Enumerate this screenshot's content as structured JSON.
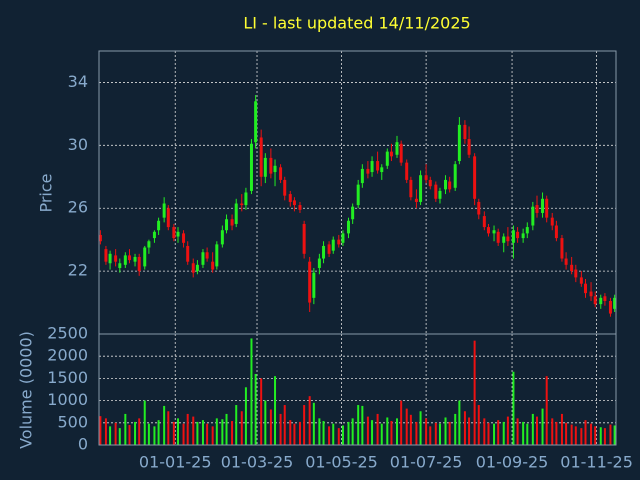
{
  "chart_data": {
    "type": "candlestick",
    "title": "LI - last updated 14/11/2025",
    "ylabel": "Price",
    "volume_label": "Volume (0000)",
    "colors": {
      "up": "#22ee22",
      "down": "#ee1111",
      "background": "#112233",
      "text": "#88aacc",
      "title": "#ffff33"
    },
    "grid": true,
    "xlim": [
      "2024-11-07",
      "2025-11-15"
    ],
    "xticks": [
      {
        "value": "2025-01-01",
        "label": "01-01-25"
      },
      {
        "value": "2025-03-01",
        "label": "01-03-25"
      },
      {
        "value": "2025-05-01",
        "label": "01-05-25"
      },
      {
        "value": "2025-07-01",
        "label": "01-07-25"
      },
      {
        "value": "2025-09-01",
        "label": "01-09-25"
      },
      {
        "value": "2025-11-01",
        "label": "01-11-25"
      }
    ],
    "ylim": [
      18,
      36
    ],
    "yticks": [
      22,
      26,
      30,
      34
    ],
    "volume_ylim": [
      0,
      2500
    ],
    "volume_yticks": [
      0,
      500,
      1000,
      1500,
      2000,
      2500
    ],
    "x": [
      "2024-11-08",
      "2024-11-12",
      "2024-11-15",
      "2024-11-19",
      "2024-11-22",
      "2024-11-26",
      "2024-11-29",
      "2024-12-03",
      "2024-12-06",
      "2024-12-10",
      "2024-12-13",
      "2024-12-17",
      "2024-12-20",
      "2024-12-24",
      "2024-12-27",
      "2024-12-31",
      "2025-01-03",
      "2025-01-07",
      "2025-01-10",
      "2025-01-14",
      "2025-01-17",
      "2025-01-21",
      "2025-01-24",
      "2025-01-28",
      "2025-01-31",
      "2025-02-04",
      "2025-02-07",
      "2025-02-11",
      "2025-02-14",
      "2025-02-18",
      "2025-02-21",
      "2025-02-25",
      "2025-02-28",
      "2025-03-04",
      "2025-03-07",
      "2025-03-11",
      "2025-03-14",
      "2025-03-18",
      "2025-03-21",
      "2025-03-25",
      "2025-03-28",
      "2025-04-01",
      "2025-04-04",
      "2025-04-08",
      "2025-04-11",
      "2025-04-15",
      "2025-04-18",
      "2025-04-22",
      "2025-04-25",
      "2025-04-29",
      "2025-05-02",
      "2025-05-06",
      "2025-05-09",
      "2025-05-13",
      "2025-05-16",
      "2025-05-20",
      "2025-05-23",
      "2025-05-27",
      "2025-05-30",
      "2025-06-03",
      "2025-06-06",
      "2025-06-10",
      "2025-06-13",
      "2025-06-17",
      "2025-06-20",
      "2025-06-24",
      "2025-06-27",
      "2025-07-01",
      "2025-07-04",
      "2025-07-08",
      "2025-07-11",
      "2025-07-15",
      "2025-07-18",
      "2025-07-22",
      "2025-07-25",
      "2025-07-29",
      "2025-08-01",
      "2025-08-05",
      "2025-08-08",
      "2025-08-12",
      "2025-08-15",
      "2025-08-19",
      "2025-08-22",
      "2025-08-26",
      "2025-08-29",
      "2025-09-02",
      "2025-09-05",
      "2025-09-09",
      "2025-09-12",
      "2025-09-16",
      "2025-09-19",
      "2025-09-23",
      "2025-09-26",
      "2025-09-30",
      "2025-10-03",
      "2025-10-07",
      "2025-10-10",
      "2025-10-14",
      "2025-10-17",
      "2025-10-21",
      "2025-10-24",
      "2025-10-28",
      "2025-10-31",
      "2025-11-04",
      "2025-11-07",
      "2025-11-11",
      "2025-11-14"
    ],
    "open": [
      24.3,
      23.4,
      22.5,
      23.0,
      22.2,
      22.4,
      23.0,
      22.6,
      22.9,
      22.3,
      23.5,
      24.1,
      24.6,
      25.4,
      26.0,
      24.8,
      24.2,
      24.4,
      23.6,
      22.5,
      22.0,
      22.4,
      23.2,
      22.6,
      22.3,
      23.7,
      24.6,
      25.3,
      25.0,
      26.3,
      26.2,
      27.1,
      30.2,
      30.5,
      28.0,
      29.2,
      28.3,
      28.6,
      27.8,
      26.9,
      26.5,
      26.2,
      25.0,
      22.6,
      20.3,
      22.2,
      22.8,
      23.7,
      23.3,
      24.0,
      23.8,
      24.4,
      25.3,
      26.2,
      27.6,
      28.5,
      28.3,
      29.0,
      28.3,
      28.7,
      29.6,
      29.4,
      30.1,
      28.9,
      27.8,
      26.6,
      26.4,
      28.1,
      27.8,
      27.5,
      26.6,
      27.2,
      27.7,
      27.3,
      29.0,
      31.3,
      30.4,
      29.3,
      26.4,
      25.5,
      24.8,
      24.4,
      24.5,
      23.8,
      24.2,
      23.8,
      24.5,
      24.1,
      24.4,
      24.9,
      26.2,
      25.7,
      26.6,
      25.4,
      24.9,
      24.1,
      22.8,
      22.4,
      22.1,
      21.6,
      21.2,
      20.7,
      20.4,
      19.9,
      20.4,
      20.1,
      19.6
    ],
    "high": [
      24.6,
      23.6,
      23.3,
      23.4,
      22.8,
      23.2,
      23.4,
      23.1,
      23.1,
      23.6,
      24.0,
      24.6,
      25.4,
      26.7,
      26.2,
      25.0,
      24.8,
      24.6,
      23.9,
      22.8,
      22.7,
      23.4,
      23.5,
      23.2,
      23.9,
      24.9,
      25.6,
      25.6,
      26.6,
      26.9,
      27.3,
      30.4,
      33.2,
      31.0,
      29.5,
      29.8,
      29.1,
      28.8,
      28.0,
      27.1,
      26.7,
      26.4,
      25.2,
      22.9,
      22.2,
      23.1,
      23.9,
      23.9,
      24.2,
      24.3,
      24.6,
      25.4,
      26.3,
      27.8,
      28.8,
      29.0,
      29.3,
      29.6,
      28.8,
      29.8,
      30.1,
      30.6,
      30.3,
      29.1,
      28.0,
      27.2,
      28.4,
      28.8,
      28.0,
      27.7,
      27.3,
      28.1,
      28.0,
      29.0,
      31.8,
      31.6,
      31.2,
      29.5,
      26.6,
      25.8,
      25.0,
      24.9,
      24.7,
      24.4,
      24.8,
      24.9,
      24.8,
      24.7,
      25.1,
      26.4,
      26.8,
      27.0,
      26.8,
      25.7,
      25.2,
      24.3,
      23.2,
      22.9,
      22.4,
      22.0,
      21.5,
      21.3,
      20.7,
      20.5,
      20.6,
      20.3,
      20.5
    ],
    "low": [
      23.7,
      22.4,
      22.1,
      22.3,
      21.9,
      22.2,
      22.5,
      22.3,
      21.7,
      22.1,
      23.1,
      23.8,
      24.3,
      25.1,
      24.6,
      23.9,
      23.8,
      23.5,
      22.4,
      21.6,
      21.8,
      22.2,
      22.6,
      21.9,
      22.1,
      23.5,
      24.4,
      24.6,
      24.8,
      25.8,
      25.9,
      26.9,
      29.8,
      27.4,
      27.6,
      27.9,
      27.4,
      27.6,
      26.5,
      26.1,
      25.8,
      25.7,
      22.8,
      19.4,
      19.9,
      21.8,
      22.5,
      22.9,
      23.1,
      23.5,
      23.6,
      24.1,
      25.0,
      26.0,
      27.3,
      27.9,
      28.0,
      28.2,
      27.8,
      28.5,
      29.0,
      29.2,
      28.7,
      27.6,
      26.5,
      26.0,
      26.2,
      27.6,
      27.2,
      26.4,
      26.3,
      26.9,
      27.0,
      27.1,
      28.8,
      30.1,
      29.2,
      26.2,
      25.3,
      24.6,
      24.2,
      23.9,
      23.6,
      23.2,
      23.6,
      22.8,
      23.8,
      23.8,
      24.1,
      24.6,
      25.4,
      25.4,
      25.1,
      24.6,
      23.9,
      22.6,
      22.1,
      21.8,
      21.3,
      21.0,
      20.3,
      20.1,
      19.7,
      19.6,
      19.8,
      19.1,
      19.4
    ],
    "close": [
      23.9,
      22.6,
      23.1,
      22.6,
      22.5,
      23.0,
      22.7,
      22.9,
      22.0,
      23.5,
      23.9,
      24.5,
      25.2,
      26.3,
      24.8,
      24.1,
      24.5,
      23.8,
      22.6,
      21.9,
      22.4,
      23.2,
      22.8,
      22.1,
      23.7,
      24.6,
      25.3,
      24.9,
      26.3,
      26.2,
      27.0,
      30.1,
      32.8,
      28.0,
      29.2,
      28.2,
      28.7,
      27.8,
      26.8,
      26.4,
      26.2,
      25.9,
      23.1,
      20.0,
      21.9,
      22.8,
      23.6,
      23.1,
      24.0,
      23.7,
      24.4,
      25.2,
      26.1,
      27.5,
      28.5,
      28.2,
      29.0,
      28.4,
      28.6,
      29.6,
      29.3,
      30.2,
      28.9,
      27.8,
      26.7,
      26.4,
      28.1,
      27.8,
      27.4,
      26.6,
      27.1,
      27.8,
      27.2,
      28.8,
      31.3,
      30.4,
      29.4,
      26.6,
      25.6,
      24.8,
      24.4,
      24.6,
      23.8,
      24.2,
      23.9,
      24.6,
      24.1,
      24.4,
      24.8,
      26.1,
      25.7,
      26.6,
      25.4,
      24.9,
      24.1,
      22.8,
      22.4,
      22.0,
      21.6,
      21.2,
      20.6,
      20.4,
      19.9,
      20.3,
      20.1,
      19.3,
      20.3
    ],
    "volume": [
      650,
      600,
      420,
      500,
      380,
      700,
      450,
      520,
      600,
      1000,
      480,
      420,
      560,
      880,
      760,
      520,
      600,
      480,
      700,
      640,
      520,
      560,
      480,
      420,
      600,
      580,
      700,
      540,
      900,
      760,
      1300,
      2400,
      1600,
      1500,
      1000,
      800,
      1550,
      700,
      900,
      560,
      480,
      520,
      900,
      1100,
      950,
      600,
      540,
      420,
      480,
      380,
      440,
      520,
      600,
      900,
      880,
      640,
      560,
      700,
      480,
      620,
      540,
      600,
      1000,
      820,
      680,
      520,
      760,
      600,
      420,
      500,
      480,
      620,
      520,
      700,
      1000,
      760,
      620,
      2350,
      900,
      600,
      500,
      480,
      560,
      520,
      640,
      1650,
      600,
      520,
      480,
      700,
      640,
      820,
      1550,
      600,
      520,
      700,
      500,
      460,
      420,
      380,
      560,
      480,
      420,
      400,
      380,
      460,
      440
    ]
  }
}
